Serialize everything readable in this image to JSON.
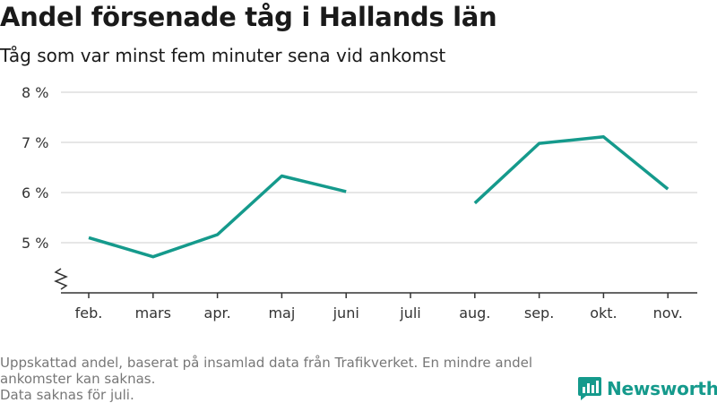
{
  "header": {
    "title": "Andel försenade tåg i Hallands län",
    "subtitle": "Tåg som var minst fem minuter sena vid ankomst"
  },
  "footer": {
    "line1": "Uppskattad andel, baserat på insamlad data från Trafikverket. En mindre andel ankomster kan saknas.",
    "line2": "Data saknas för juli."
  },
  "brand": {
    "name": "Newsworthy",
    "icon": "newsworthy-logo-icon",
    "color": "#159a8c"
  },
  "chart_data": {
    "type": "line",
    "categories": [
      "feb.",
      "mars",
      "apr.",
      "maj",
      "juni",
      "juli",
      "aug.",
      "sep.",
      "okt.",
      "nov."
    ],
    "series": [
      {
        "values": [
          5.1,
          4.72,
          5.16,
          6.33,
          6.02,
          null,
          5.79,
          6.98,
          7.11,
          6.07
        ],
        "color": "#159a8c"
      }
    ],
    "yticks": [
      5,
      6,
      7,
      8
    ],
    "ytick_labels": [
      "5 %",
      "6 %",
      "7 %",
      "8 %"
    ],
    "ylim": [
      4,
      8
    ],
    "axis_break": true,
    "grid": true,
    "legend": "none"
  }
}
